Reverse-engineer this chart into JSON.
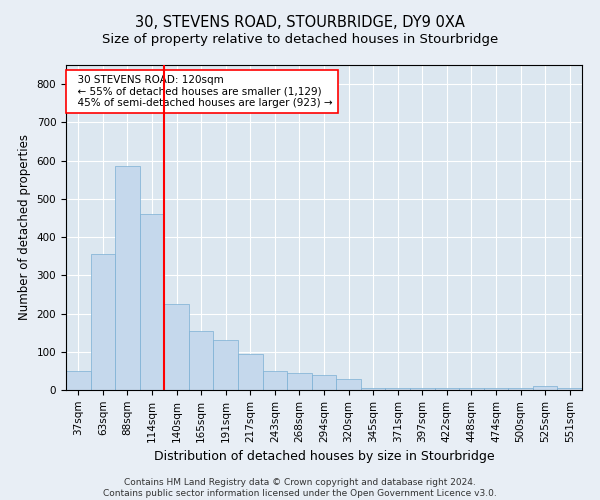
{
  "title": "30, STEVENS ROAD, STOURBRIDGE, DY9 0XA",
  "subtitle": "Size of property relative to detached houses in Stourbridge",
  "xlabel": "Distribution of detached houses by size in Stourbridge",
  "ylabel": "Number of detached properties",
  "footer_line1": "Contains HM Land Registry data © Crown copyright and database right 2024.",
  "footer_line2": "Contains public sector information licensed under the Open Government Licence v3.0.",
  "categories": [
    "37sqm",
    "63sqm",
    "88sqm",
    "114sqm",
    "140sqm",
    "165sqm",
    "191sqm",
    "217sqm",
    "243sqm",
    "268sqm",
    "294sqm",
    "320sqm",
    "345sqm",
    "371sqm",
    "397sqm",
    "422sqm",
    "448sqm",
    "474sqm",
    "500sqm",
    "525sqm",
    "551sqm"
  ],
  "values": [
    50,
    355,
    585,
    460,
    225,
    155,
    130,
    95,
    50,
    45,
    40,
    30,
    5,
    5,
    5,
    5,
    5,
    5,
    5,
    10,
    5
  ],
  "bar_color": "#c5d8ec",
  "bar_edge_color": "#7aafd4",
  "vline_x": 3.5,
  "vline_color": "red",
  "annotation_text": "  30 STEVENS ROAD: 120sqm\n  ← 55% of detached houses are smaller (1,129)\n  45% of semi-detached houses are larger (923) →",
  "ylim": [
    0,
    850
  ],
  "yticks": [
    0,
    100,
    200,
    300,
    400,
    500,
    600,
    700,
    800
  ],
  "background_color": "#e8eef5",
  "plot_bg_color": "#dce7f0",
  "grid_color": "#ffffff",
  "title_fontsize": 10.5,
  "subtitle_fontsize": 9.5,
  "ylabel_fontsize": 8.5,
  "xlabel_fontsize": 9,
  "tick_fontsize": 7.5,
  "annot_fontsize": 7.5,
  "footer_fontsize": 6.5
}
